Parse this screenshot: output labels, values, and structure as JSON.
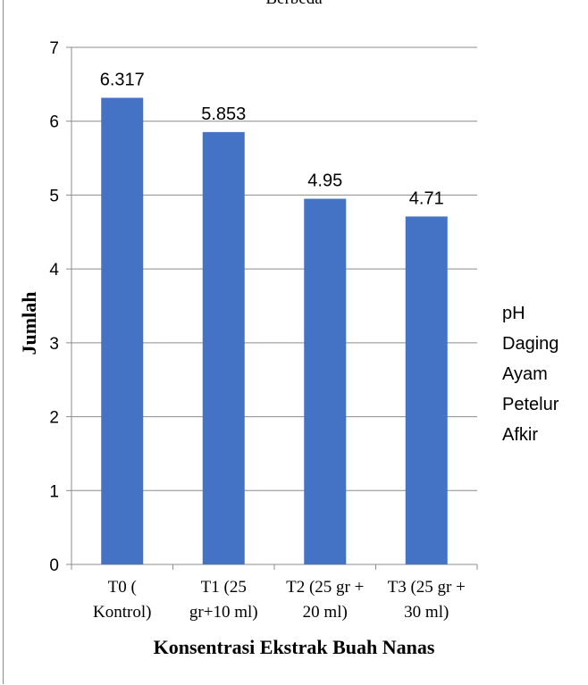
{
  "title_fragment": "Berbeda",
  "chart_data": {
    "type": "bar",
    "categories": [
      [
        "T0 (",
        "Kontrol)"
      ],
      [
        "T1 (25",
        "gr+10 ml)"
      ],
      [
        "T2 (25 gr +",
        "20 ml)"
      ],
      [
        "T3 (25 gr +",
        "30 ml)"
      ]
    ],
    "series": [
      {
        "name": "pH Daging Ayam Petelur Afkir",
        "values": [
          6.317,
          5.853,
          4.95,
          4.71
        ],
        "labels": [
          "6.317",
          "5.853",
          "4.95",
          "4.71"
        ]
      }
    ],
    "xlabel": "Konsentrasi Ekstrak Buah  Nanas",
    "ylabel": "Jumlah",
    "ylim": [
      0,
      7
    ],
    "yticks": [
      "0",
      "1",
      "2",
      "3",
      "4",
      "5",
      "6",
      "7"
    ],
    "grid": true,
    "legend_position": "right",
    "legend_lines": [
      "pH",
      "Daging",
      "Ayam",
      "Petelur",
      "Afkir"
    ],
    "bar_color": "#4472c4"
  }
}
